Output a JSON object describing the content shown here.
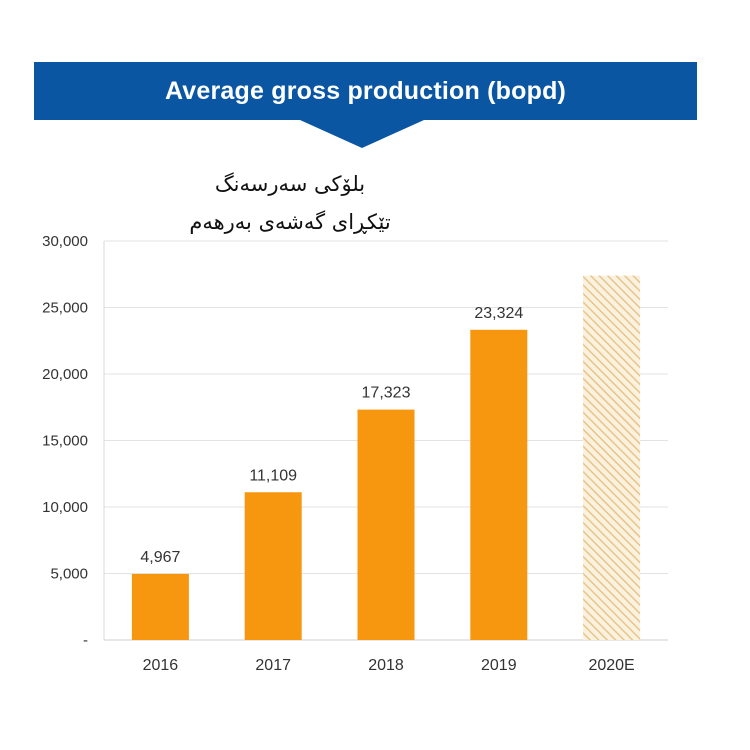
{
  "header": {
    "title": "Average gross production (bopd)"
  },
  "subtitle": {
    "line1": "بلۆکی سەرسەنگ",
    "line2": "تێکڕای گەشەی بەرهەم"
  },
  "colors": {
    "banner": "#0b56a2",
    "bar": "#f7960f",
    "estimate_hatch": "#e7c58a",
    "grid": "#e3e3e3",
    "text": "#333333"
  },
  "chart_data": {
    "type": "bar",
    "title": "Average gross production (bopd)",
    "xlabel": "",
    "ylabel": "",
    "categories": [
      "2016",
      "2017",
      "2018",
      "2019",
      "2020E"
    ],
    "values": [
      4967,
      11109,
      17323,
      23324,
      27400
    ],
    "data_labels": [
      "4,967",
      "11,109",
      "17,323",
      "23,324",
      ""
    ],
    "estimated": [
      false,
      false,
      false,
      false,
      true
    ],
    "ylim": [
      0,
      30000
    ],
    "y_ticks": [
      0,
      5000,
      10000,
      15000,
      20000,
      25000,
      30000
    ],
    "y_tick_labels": [
      "-",
      "5,000",
      "10,000",
      "15,000",
      "20,000",
      "25,000",
      "30,000"
    ],
    "grid": true,
    "legend": "none"
  }
}
